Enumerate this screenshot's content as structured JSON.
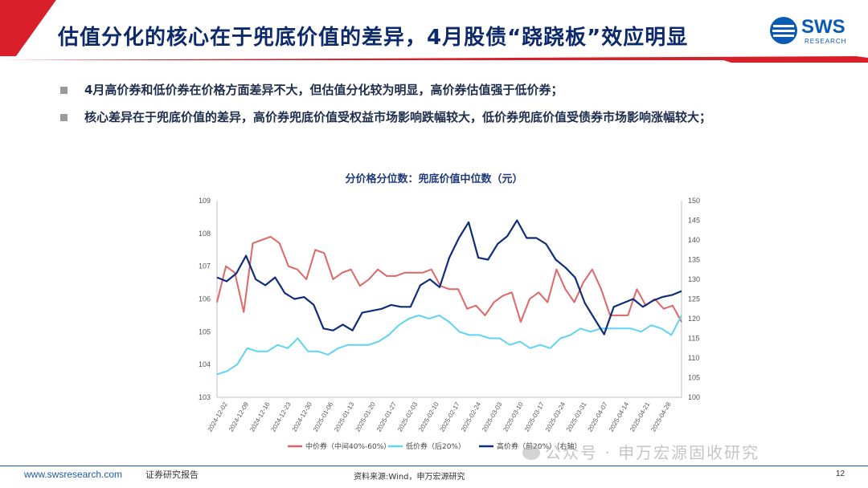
{
  "slide": {
    "title": "估值分化的核心在于兜底价值的差异，4月股债“跷跷板”效应明显",
    "logo_text": "SWS",
    "logo_sub": "RESEARCH",
    "bullets": [
      "4月高价券和低价券在价格方面差异不大，但估值分化较为明显，高价券估值强于低价券；",
      "核心差异在于兜底价值的差异，高价券兜底价值受权益市场影响跌幅较大，低价券兜底价值受债券市场影响涨幅较大；"
    ],
    "footer": {
      "url": "www.swsresearch.com",
      "report_type": "证券研究报告",
      "source": "资料来源:Wind，申万宏源研究",
      "page": "12"
    },
    "watermark": "公众号 · 申万宏源固收研究",
    "colors": {
      "title_band_red": "#d9202a",
      "title_navy": "#0c2a6b",
      "accent_blue": "#1e5aa8"
    }
  },
  "chart_data": {
    "type": "line",
    "title": "分价格分位数：兜底价值中位数（元）",
    "xlabel": "",
    "ylabel": "",
    "ylim": [
      103,
      109
    ],
    "y2lim": [
      100,
      150
    ],
    "y_ticks": [
      "103",
      "104",
      "105",
      "106",
      "107",
      "108",
      "109"
    ],
    "y2_ticks": [
      "100",
      "105",
      "110",
      "115",
      "120",
      "125",
      "130",
      "135",
      "140",
      "145",
      "150"
    ],
    "x_ticks": [
      "2024-12-02",
      "2024-12-09",
      "2024-12-16",
      "2024-12-23",
      "2024-12-30",
      "2025-01-06",
      "2025-01-13",
      "2025-01-20",
      "2025-01-27",
      "2025-02-03",
      "2025-02-10",
      "2025-02-17",
      "2025-02-24",
      "2025-03-03",
      "2025-03-10",
      "2025-03-17",
      "2025-03-24",
      "2025-03-31",
      "2025-04-07",
      "2025-04-14",
      "2025-04-21",
      "2025-04-28"
    ],
    "series": [
      {
        "name": "中价券（中间40%-60%）",
        "axis": "left",
        "color": "#e06666",
        "values": [
          105.9,
          107.0,
          106.8,
          105.6,
          107.7,
          107.8,
          107.9,
          107.7,
          107.0,
          106.9,
          106.6,
          107.5,
          107.4,
          106.6,
          106.8,
          106.9,
          106.4,
          106.6,
          106.9,
          106.7,
          106.7,
          106.8,
          106.8,
          106.8,
          106.9,
          106.4,
          106.3,
          106.3,
          105.7,
          105.8,
          105.5,
          105.9,
          106.1,
          106.2,
          105.3,
          106.0,
          106.2,
          105.9,
          106.9,
          106.3,
          105.9,
          106.5,
          106.9,
          106.3,
          105.5,
          105.5,
          105.5,
          106.3,
          105.8,
          106.0,
          105.7,
          105.8,
          105.3
        ],
        "x_start": "2024-12-02"
      },
      {
        "name": "低价券（后20%）",
        "axis": "left",
        "color": "#5fd3f3",
        "values": [
          103.7,
          103.8,
          104.0,
          104.5,
          104.4,
          104.4,
          104.6,
          104.5,
          104.8,
          104.4,
          104.4,
          104.3,
          104.5,
          104.6,
          104.6,
          104.6,
          104.7,
          104.9,
          105.2,
          105.4,
          105.5,
          105.4,
          105.5,
          105.3,
          105.0,
          104.9,
          104.9,
          104.8,
          104.8,
          104.6,
          104.7,
          104.5,
          104.6,
          104.5,
          104.8,
          104.9,
          105.1,
          105.0,
          105.1,
          105.1,
          105.1,
          105.1,
          105.0,
          105.2,
          105.1,
          104.9,
          105.5
        ],
        "x_start": "2024-12-02"
      },
      {
        "name": "高价券（前20%）（右轴）",
        "axis": "right",
        "color": "#0f2d7a",
        "values": [
          130.5,
          129.5,
          131.5,
          136,
          130.0,
          128.5,
          130.5,
          126.5,
          125.0,
          125.5,
          123.5,
          117.5,
          117.0,
          118.5,
          117.0,
          121.5,
          122.0,
          122.5,
          123.5,
          123.0,
          123.0,
          128.5,
          130.0,
          128.0,
          135.5,
          140.5,
          144.5,
          135.5,
          135.0,
          139.0,
          141.0,
          145.0,
          140.5,
          140.5,
          139.0,
          135.0,
          133.0,
          130.5,
          124.0,
          120.0,
          116.0,
          123.0,
          124.0,
          125.0,
          123.0,
          124.5,
          125.5,
          126.0,
          127.0
        ],
        "x_start": "2024-12-02"
      }
    ],
    "legend_position": "bottom",
    "grid": false
  }
}
